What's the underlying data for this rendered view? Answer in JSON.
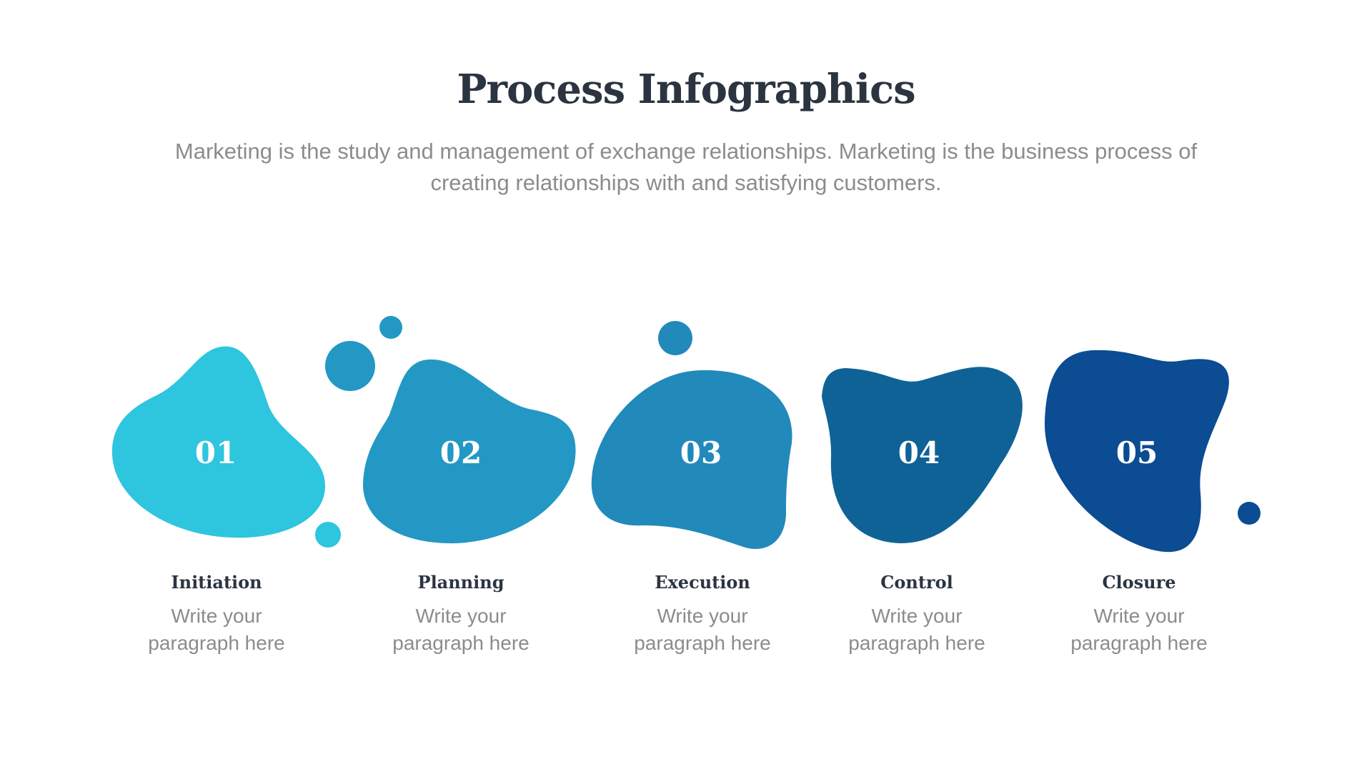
{
  "title": "Process Infographics",
  "subtitle": "Marketing is the study and management of exchange relationships. Marketing is the business process of creating relationships with and satisfying customers.",
  "steps": [
    {
      "number": "01",
      "label": "Initiation",
      "text_line1": "Write your",
      "text_line2": "paragraph here",
      "color": "#2ec5de"
    },
    {
      "number": "02",
      "label": "Planning",
      "text_line1": "Write your",
      "text_line2": "paragraph here",
      "color": "#2398c4"
    },
    {
      "number": "03",
      "label": "Execution",
      "text_line1": "Write your",
      "text_line2": "paragraph here",
      "color": "#2289bb"
    },
    {
      "number": "04",
      "label": "Control",
      "text_line1": "Write your",
      "text_line2": "paragraph here",
      "color": "#0f6296"
    },
    {
      "number": "05",
      "label": "Closure",
      "text_line1": "Write your",
      "text_line2": "paragraph here",
      "color": "#0b4c93"
    }
  ]
}
